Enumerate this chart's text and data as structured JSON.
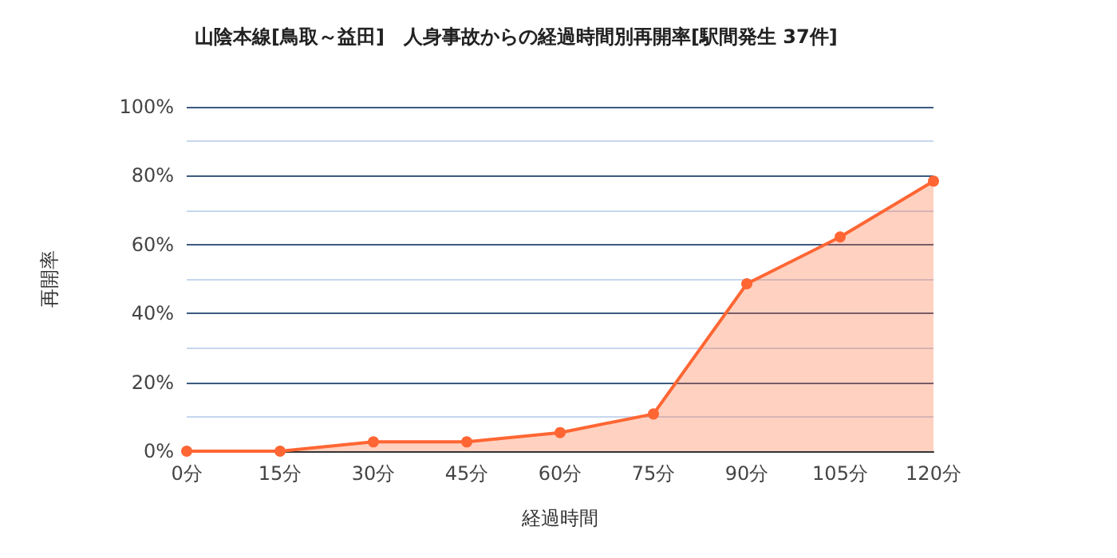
{
  "chart_data": {
    "type": "area",
    "title": "山陰本線[鳥取～益田]　人身事故からの経過時間別再開率[駅間発生 37件]",
    "xlabel": "経過時間",
    "ylabel": "再開率",
    "categories": [
      "0分",
      "15分",
      "30分",
      "45分",
      "60分",
      "75分",
      "90分",
      "105分",
      "120分"
    ],
    "series": [
      {
        "color": "#ff6633",
        "values": [
          0,
          0,
          2.7,
          2.7,
          5.4,
          10.8,
          48.6,
          62.2,
          78.4
        ]
      }
    ],
    "ylim": [
      0,
      100
    ],
    "yticks": [
      {
        "value": 0,
        "label": "0%"
      },
      {
        "value": 10,
        "label": null
      },
      {
        "value": 20,
        "label": "20%"
      },
      {
        "value": 30,
        "label": null
      },
      {
        "value": 40,
        "label": "40%"
      },
      {
        "value": 50,
        "label": null
      },
      {
        "value": 60,
        "label": "60%"
      },
      {
        "value": 70,
        "label": null
      },
      {
        "value": 80,
        "label": "80%"
      },
      {
        "value": 90,
        "label": null
      },
      {
        "value": 100,
        "label": "100%"
      }
    ],
    "grid": true,
    "marker": "circle",
    "line_style": "solid"
  }
}
